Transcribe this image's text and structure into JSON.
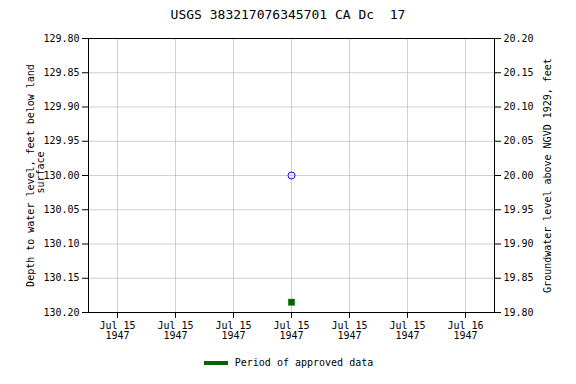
{
  "chart_data": {
    "type": "scatter",
    "title": "USGS 383217076345701 CA Dc  17",
    "ylabel": "Depth to water level, feet below land\n surface",
    "y2label": "Groundwater level above NGVD 1929, feet",
    "categories": [
      "Jul 15\n1947",
      "Jul 15\n1947",
      "Jul 15\n1947",
      "Jul 15\n1947",
      "Jul 15\n1947",
      "Jul 15\n1947",
      "Jul 16\n1947"
    ],
    "series": [
      {
        "color": "blue",
        "marker": "open_circle",
        "values": [
          null,
          null,
          null,
          130.0,
          null,
          null,
          null
        ]
      },
      {
        "name": "Period of approved data",
        "color": "#006400",
        "marker": "square",
        "values": [
          null,
          null,
          null,
          130.185,
          null,
          null,
          null
        ]
      }
    ],
    "ylim": [
      130.2,
      129.8
    ],
    "yticks": [
      {
        "value": 129.8,
        "label": "129.80"
      },
      129.85,
      {
        "value": 129.9,
        "label": "129.90"
      },
      129.95,
      {
        "value": 130.0,
        "label": "130.00"
      },
      130.05,
      {
        "value": 130.1,
        "label": "130.10"
      },
      130.15,
      {
        "value": 130.2,
        "label": "130.20"
      }
    ],
    "y2lim": [
      19.8,
      20.2
    ],
    "y2ticks": [
      {
        "value": 20.2,
        "label": "20.20"
      },
      20.15,
      {
        "value": 20.1,
        "label": "20.10"
      },
      20.05,
      {
        "value": 20.0,
        "label": "20.00"
      },
      19.95,
      {
        "value": 19.9,
        "label": "19.90"
      },
      19.85,
      {
        "value": 19.8,
        "label": "19.80"
      }
    ],
    "grid": true,
    "legend": "bottom"
  }
}
